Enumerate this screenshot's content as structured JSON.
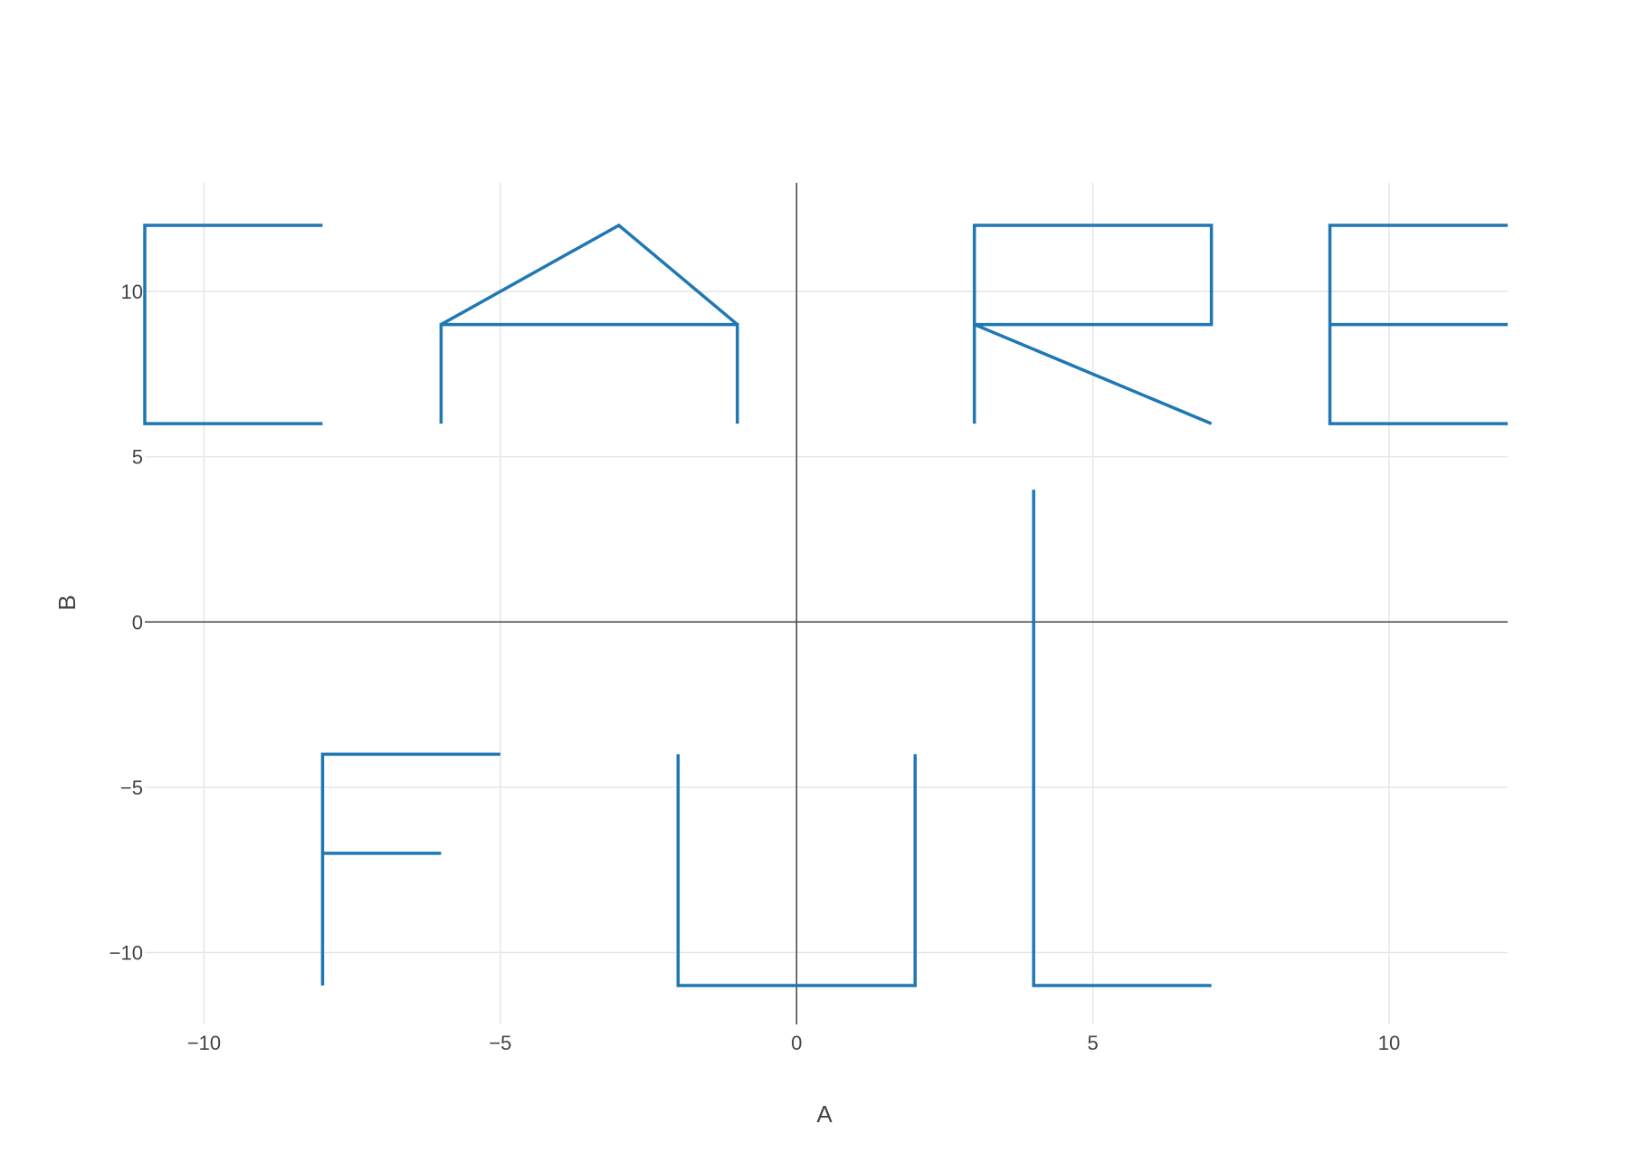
{
  "chart_data": {
    "type": "line",
    "title": "",
    "xlabel": "A",
    "ylabel": "B",
    "xlim": [
      -11,
      12
    ],
    "ylim": [
      -12.5,
      13.2
    ],
    "x_ticks": [
      -10,
      -5,
      0,
      5,
      10
    ],
    "y_ticks": [
      -10,
      -5,
      0,
      5,
      10
    ],
    "x_tick_labels": [
      "−10",
      "−5",
      "0",
      "5",
      "10"
    ],
    "y_tick_labels": [
      "−10",
      "−5",
      "0",
      "5",
      "10"
    ],
    "grid": true,
    "zero_lines": true,
    "legend": "none",
    "series": [
      {
        "color": "#1f77b4",
        "points": [
          [
            -8,
            12
          ],
          [
            -11,
            12
          ],
          [
            -11,
            6
          ],
          [
            -8,
            6
          ],
          null,
          [
            -6,
            6
          ],
          [
            -6,
            9
          ],
          [
            -1,
            9
          ],
          [
            -1,
            6
          ],
          null,
          [
            -6,
            9
          ],
          [
            -3,
            12
          ],
          [
            -1,
            9
          ],
          null,
          [
            3,
            6
          ],
          [
            3,
            12
          ],
          [
            7,
            12
          ],
          [
            7,
            9
          ],
          [
            3,
            9
          ],
          [
            7,
            6
          ],
          null,
          [
            12,
            12
          ],
          [
            9,
            12
          ],
          [
            9,
            6
          ],
          [
            12,
            6
          ],
          null,
          [
            9,
            9
          ],
          [
            12,
            9
          ],
          null,
          [
            -8,
            -11
          ],
          [
            -8,
            -4
          ],
          [
            -5,
            -4
          ],
          null,
          [
            -8,
            -7
          ],
          [
            -6,
            -7
          ],
          null,
          [
            -2,
            -4
          ],
          [
            -2,
            -11
          ],
          [
            2,
            -11
          ],
          [
            2,
            -4
          ],
          null,
          [
            4,
            4
          ],
          [
            4,
            -11
          ],
          [
            7,
            -11
          ]
        ]
      }
    ]
  }
}
